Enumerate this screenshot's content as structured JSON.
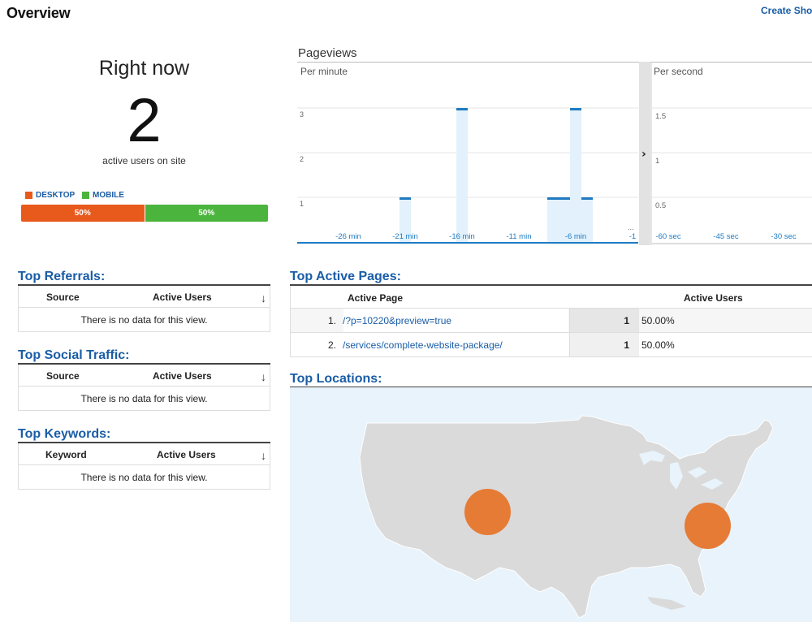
{
  "header": {
    "title": "Overview",
    "create_link": "Create Shor"
  },
  "right_now": {
    "title": "Right now",
    "count": "2",
    "subtitle": "active users on site",
    "legend": [
      {
        "label": "DESKTOP",
        "color": "#e8591c"
      },
      {
        "label": "MOBILE",
        "color": "#4bb43c"
      }
    ],
    "split": [
      {
        "label": "50%",
        "value": 50,
        "color": "#e8591c"
      },
      {
        "label": "50%",
        "value": 50,
        "color": "#4bb43c"
      }
    ]
  },
  "pageviews": {
    "title": "Pageviews",
    "per_minute_label": "Per minute",
    "per_second_label": "Per second",
    "expand_glyph": "›",
    "more_glyph": "...",
    "per_minute_y_ticks": [
      "3",
      "2",
      "1"
    ],
    "per_minute_x_ticks": [
      "-26 min",
      "-21 min",
      "-16 min",
      "-11 min",
      "-6 min",
      "-1"
    ],
    "per_second_y_ticks": [
      "1.5",
      "1",
      "0.5"
    ],
    "per_second_x_ticks": [
      "-60 sec",
      "-45 sec",
      "-30 sec"
    ]
  },
  "chart_data": {
    "type": "bar",
    "title": "Pageviews",
    "subtitle": "Per minute",
    "x": [
      -30,
      -29,
      -28,
      -27,
      -26,
      -25,
      -24,
      -23,
      -22,
      -21,
      -20,
      -19,
      -18,
      -17,
      -16,
      -15,
      -14,
      -13,
      -12,
      -11,
      -10,
      -9,
      -8,
      -7,
      -6,
      -5,
      -4,
      -3,
      -2,
      -1
    ],
    "values": [
      0,
      0,
      0,
      0,
      0,
      0,
      0,
      0,
      0,
      1,
      0,
      0,
      0,
      0,
      3,
      0,
      0,
      0,
      0,
      0,
      0,
      0,
      1,
      1,
      3,
      1,
      0,
      0,
      0,
      0
    ],
    "xlabel": "",
    "ylabel": "",
    "ylim": [
      0,
      3
    ],
    "grid": true
  },
  "referrals": {
    "title": "Top Referrals:",
    "col_source": "Source",
    "col_users": "Active Users",
    "sort_glyph": "↓",
    "empty": "There is no data for this view."
  },
  "social": {
    "title": "Top Social Traffic:",
    "col_source": "Source",
    "col_users": "Active Users",
    "sort_glyph": "↓",
    "empty": "There is no data for this view."
  },
  "keywords": {
    "title": "Top Keywords:",
    "col_source": "Keyword",
    "col_users": "Active Users",
    "sort_glyph": "↓",
    "empty": "There is no data for this view."
  },
  "active_pages": {
    "title": "Top Active Pages:",
    "col_page": "Active Page",
    "col_users": "Active Users",
    "rows": [
      {
        "idx": "1.",
        "page": "/?p=10220&preview=true",
        "users": "1",
        "pct": "50.00%"
      },
      {
        "idx": "2.",
        "page": "/services/complete-website-package/",
        "users": "1",
        "pct": "50.00%"
      }
    ]
  },
  "locations": {
    "title": "Top Locations:",
    "markers": [
      {
        "name": "central-us",
        "color": "#e57b35"
      },
      {
        "name": "east-us",
        "color": "#e57b35"
      }
    ]
  }
}
